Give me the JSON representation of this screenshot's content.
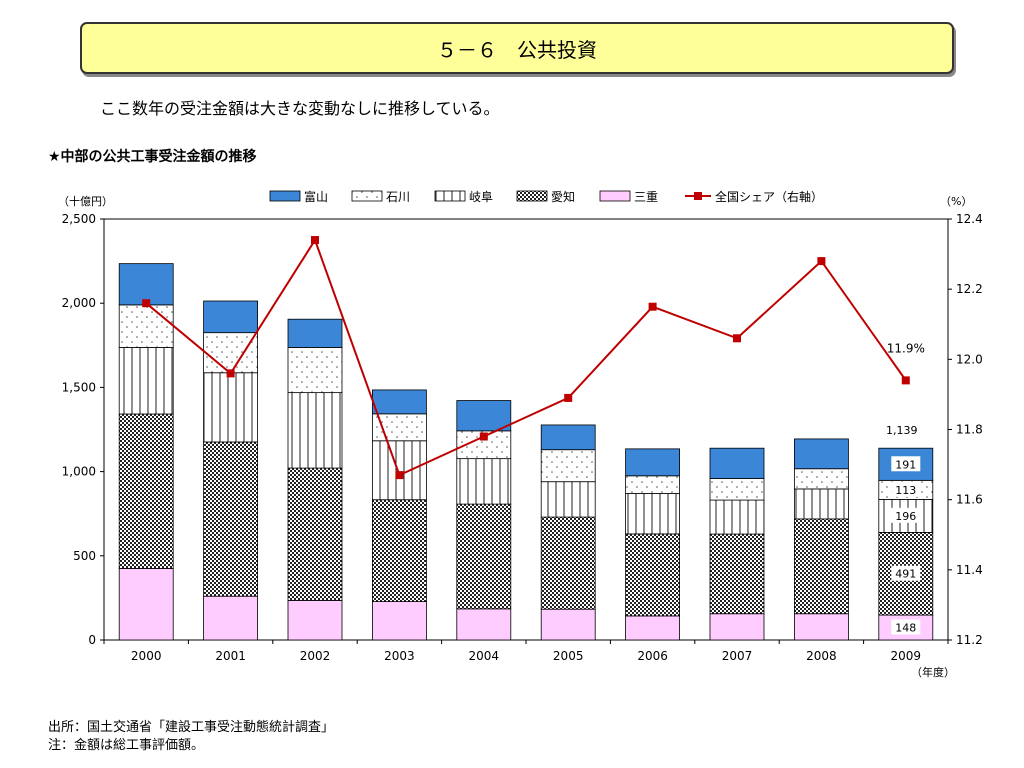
{
  "page": {
    "title": "５－６　公共投資",
    "summary": "ここ数年の受注金額は大きな変動なしに推移している。",
    "chart_heading": "★中部の公共工事受注金額の推移",
    "footer": [
      "出所：国土交通省「建設工事受注動態統計調査」",
      "注：金額は総工事評価額。"
    ]
  },
  "chart_data": {
    "type": "bar",
    "stacked": true,
    "y_unit_label": "（十億円）",
    "y2_unit_label": "（%）",
    "x_unit_label": "（年度）",
    "categories": [
      "2000",
      "2001",
      "2002",
      "2003",
      "2004",
      "2005",
      "2006",
      "2007",
      "2008",
      "2009"
    ],
    "ylim": [
      0,
      2500
    ],
    "yticks": [
      0,
      500,
      1000,
      1500,
      2000,
      2500
    ],
    "ytick_labels": [
      "0",
      "500",
      "1,000",
      "1,500",
      "2,000",
      "2,500"
    ],
    "y2lim": [
      11.2,
      12.4
    ],
    "y2ticks": [
      11.2,
      11.4,
      11.6,
      11.8,
      12.0,
      12.2,
      12.4
    ],
    "y2tick_labels": [
      "11.2",
      "11.4",
      "11.6",
      "11.8",
      "12.0",
      "12.2",
      "12.4"
    ],
    "series": [
      {
        "name": "三重",
        "pattern": "pink",
        "color": "#ffccff",
        "values": [
          425,
          260,
          235,
          228,
          185,
          183,
          143,
          156,
          156,
          148
        ]
      },
      {
        "name": "愛知",
        "pattern": "checker",
        "color": "#808080",
        "values": [
          917,
          916,
          786,
          605,
          622,
          547,
          487,
          473,
          563,
          491
        ]
      },
      {
        "name": "岐阜",
        "pattern": "vlines",
        "color": "#ffffff",
        "values": [
          395,
          411,
          448,
          350,
          270,
          210,
          240,
          202,
          178,
          196
        ]
      },
      {
        "name": "石川",
        "pattern": "dots",
        "color": "#ffffff",
        "values": [
          253,
          238,
          268,
          160,
          165,
          190,
          105,
          128,
          120,
          113
        ]
      },
      {
        "name": "富山",
        "pattern": "solid",
        "color": "#3b86d6",
        "values": [
          245,
          188,
          168,
          142,
          180,
          147,
          160,
          180,
          177,
          191
        ]
      }
    ],
    "totals_label": {
      "category": "2009",
      "text": "1,139"
    },
    "bar_value_labels": {
      "category": "2009",
      "values": [
        "148",
        "491",
        "196",
        "113",
        "191"
      ]
    },
    "line": {
      "name": "全国シェア（右軸）",
      "color": "#c00000",
      "axis": "right",
      "values": [
        12.16,
        11.96,
        12.34,
        11.67,
        11.78,
        11.89,
        12.15,
        12.06,
        12.28,
        11.94
      ]
    },
    "line_label": {
      "category": "2009",
      "text": "11.9%"
    },
    "legend_order": [
      "富山",
      "石川",
      "岐阜",
      "愛知",
      "三重",
      "全国シェア（右軸）"
    ],
    "legend": "top"
  }
}
